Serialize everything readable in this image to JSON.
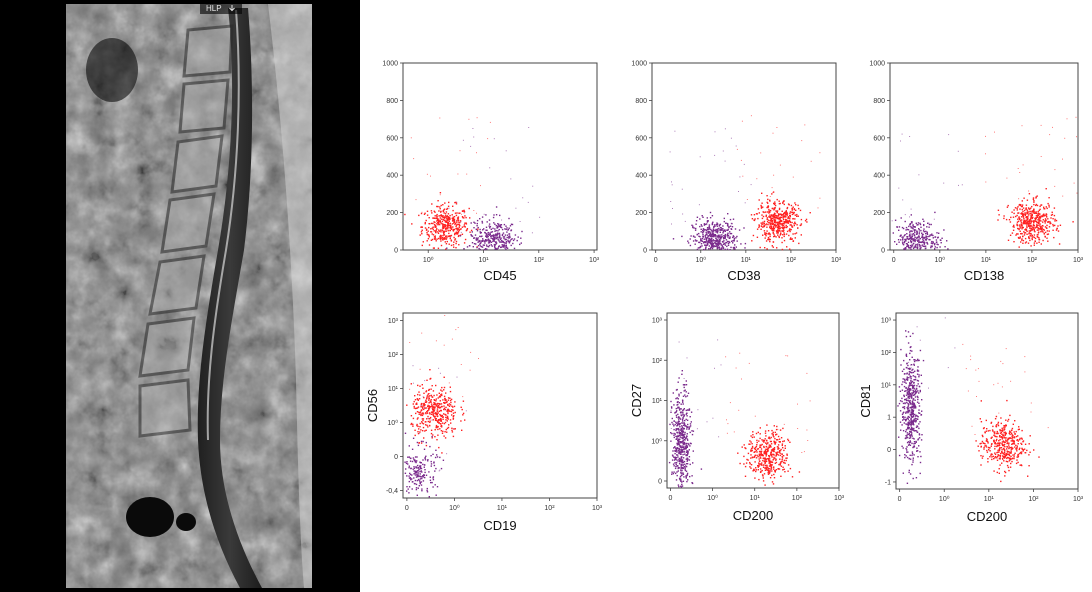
{
  "mri": {
    "label": "HLP",
    "colors": {
      "background": "#000000",
      "tissue": "#7a7a7a"
    }
  },
  "colors": {
    "plasma_cells": "#ff2020",
    "other_cells": "#7a2a8c"
  },
  "chart_data": [
    {
      "type": "scatter",
      "xlabel": "CD45",
      "ylabel": "",
      "xscale": "log",
      "xticks": [
        "10⁰",
        "10¹",
        "10²",
        "10³"
      ],
      "yticks": [
        "0",
        "200",
        "400",
        "600",
        "800",
        "1000"
      ],
      "ylim": [
        0,
        1000
      ],
      "populations": [
        {
          "color": "red",
          "center": [
            2,
            130
          ],
          "n": 400
        },
        {
          "color": "purple",
          "center": [
            15,
            60
          ],
          "n": 350
        }
      ]
    },
    {
      "type": "scatter",
      "xlabel": "CD38",
      "ylabel": "",
      "xscale": "log",
      "xticks": [
        "0",
        "10⁰",
        "10¹",
        "10²",
        "10³"
      ],
      "yticks": [
        "0",
        "200",
        "400",
        "600",
        "800",
        "1000"
      ],
      "ylim": [
        0,
        1000
      ],
      "populations": [
        {
          "color": "purple",
          "center": [
            2,
            55
          ],
          "n": 500
        },
        {
          "color": "red",
          "center": [
            50,
            150
          ],
          "n": 450
        }
      ]
    },
    {
      "type": "scatter",
      "xlabel": "CD138",
      "ylabel": "",
      "xscale": "log",
      "xticks": [
        "0",
        "10⁰",
        "10¹",
        "10²",
        "10³"
      ],
      "yticks": [
        "0",
        "200",
        "400",
        "600",
        "800",
        "1000"
      ],
      "ylim": [
        0,
        1000
      ],
      "populations": [
        {
          "color": "purple",
          "center": [
            0.3,
            55
          ],
          "n": 350
        },
        {
          "color": "red",
          "center": [
            100,
            150
          ],
          "n": 450
        }
      ]
    },
    {
      "type": "scatter",
      "xlabel": "CD19",
      "ylabel": "CD56",
      "xscale": "log",
      "xticks": [
        "0",
        "10⁰",
        "10¹",
        "10²",
        "10³"
      ],
      "yscale": "log",
      "yticks": [
        "-0,4",
        "0",
        "10⁰",
        "10¹",
        "10²",
        "10³"
      ],
      "populations": [
        {
          "color": "red",
          "center": [
            0.4,
            10
          ],
          "n": 400
        },
        {
          "color": "purple",
          "center": [
            0.1,
            0.3
          ],
          "n": 200
        }
      ]
    },
    {
      "type": "scatter",
      "xlabel": "CD200",
      "ylabel": "CD27",
      "xscale": "log",
      "xticks": [
        "0",
        "10⁰",
        "10¹",
        "10²",
        "10³"
      ],
      "yscale": "log",
      "yticks": [
        "0",
        "10⁰",
        "10¹",
        "10²",
        "10³"
      ],
      "populations": [
        {
          "color": "purple",
          "center": [
            0.1,
            3
          ],
          "n": 500
        },
        {
          "color": "red",
          "center": [
            20,
            0.6
          ],
          "n": 400
        }
      ]
    },
    {
      "type": "scatter",
      "xlabel": "CD200",
      "ylabel": "CD81",
      "xscale": "log",
      "xticks": [
        "0",
        "10⁰",
        "10¹",
        "10²",
        "10³"
      ],
      "yscale": "log",
      "yticks": [
        "-1",
        "0",
        "1",
        "10¹",
        "10²",
        "10³"
      ],
      "populations": [
        {
          "color": "purple",
          "center": [
            0.1,
            10
          ],
          "n": 500
        },
        {
          "color": "red",
          "center": [
            20,
            1.5
          ],
          "n": 400
        }
      ]
    }
  ]
}
